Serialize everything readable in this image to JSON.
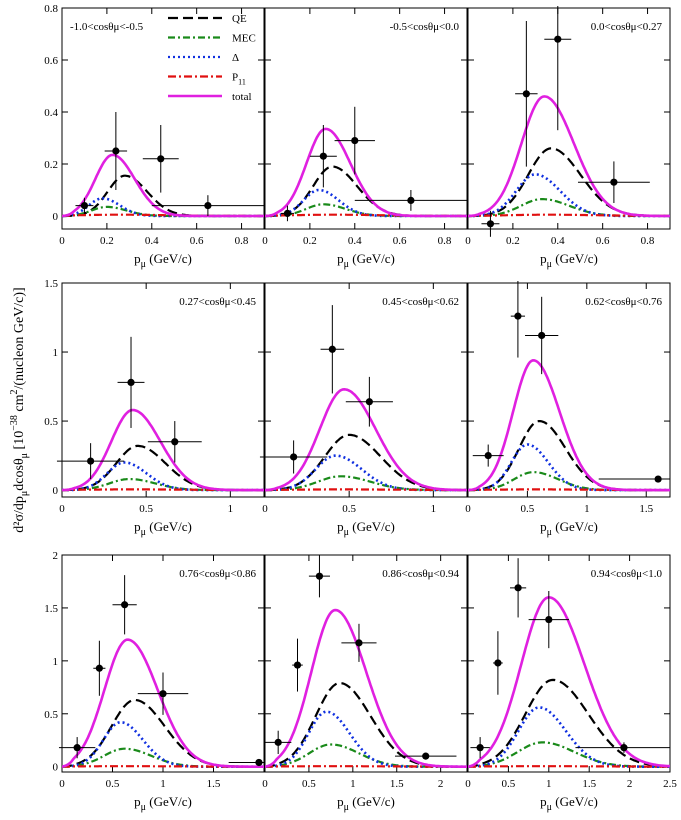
{
  "figure": {
    "ylabel": "d²σ/dp",
    "ylabel_sub1": "μ",
    "ylabel_mid": "dcosθ",
    "ylabel_sub2": "μ",
    "ylabel_mid2": " [10",
    "ylabel_sup1": "−38",
    "ylabel_mid3": " cm",
    "ylabel_sup2": "2",
    "ylabel_end": "/(nucleon GeV/c)]",
    "xlabel_main": "p",
    "xlabel_sub": "μ",
    "xlabel_unit": " (GeV/c)"
  },
  "legend": [
    {
      "label": "QE",
      "sub": "",
      "color": "#000000",
      "dash": "10,5"
    },
    {
      "label": "MEC",
      "sub": "",
      "color": "#1a8a1a",
      "dash": "7,3,2,3"
    },
    {
      "label": "Δ",
      "sub": "",
      "color": "#1030e0",
      "dash": "2,3"
    },
    {
      "label": "P",
      "sub": "11",
      "color": "#e01010",
      "dash": "8,3,2,3"
    },
    {
      "label": "total",
      "sub": "",
      "color": "#e020e0",
      "dash": ""
    }
  ],
  "chart_data": [
    {
      "type": "line",
      "title": "-1.0<cosθμ<-0.5",
      "xlim": [
        0,
        0.9
      ],
      "ylim": [
        -0.05,
        0.8
      ],
      "xticks": [
        0,
        0.2,
        0.4,
        0.6,
        0.8
      ],
      "yticks": [
        0,
        0.2,
        0.4,
        0.6,
        0.8
      ],
      "xticklabels": [
        "0",
        "0.2",
        "0.4",
        "0.6",
        "0.8"
      ],
      "yticklabels": [
        "0",
        "0.2",
        "0.4",
        "0.6",
        "0.8"
      ],
      "series": [
        {
          "name": "QE",
          "peak_x": 0.28,
          "peak_y": 0.155,
          "width": 0.09
        },
        {
          "name": "MEC",
          "peak_x": 0.2,
          "peak_y": 0.035,
          "width": 0.08
        },
        {
          "name": "Δ",
          "peak_x": 0.18,
          "peak_y": 0.068,
          "width": 0.07
        },
        {
          "name": "P11",
          "peak_x": 0.25,
          "peak_y": 0.005,
          "width": 0.2
        },
        {
          "name": "total",
          "peak_x": 0.225,
          "peak_y": 0.235,
          "width": 0.09
        }
      ],
      "points": [
        {
          "x": 0.1,
          "y": 0.04,
          "xerr": 0.04,
          "yerr": 0.03
        },
        {
          "x": 0.24,
          "y": 0.25,
          "xerr": 0.05,
          "yerr": 0.15
        },
        {
          "x": 0.44,
          "y": 0.22,
          "xerr": 0.08,
          "yerr": 0.13
        },
        {
          "x": 0.65,
          "y": 0.04,
          "xerr": 0.25,
          "yerr": 0.04
        }
      ]
    },
    {
      "type": "line",
      "title": "-0.5<cosθμ<0.0",
      "xlim": [
        0,
        0.9
      ],
      "ylim": [
        -0.05,
        0.8
      ],
      "xticks": [
        0,
        0.2,
        0.4,
        0.6,
        0.8
      ],
      "yticks": [
        0,
        0.2,
        0.4,
        0.6,
        0.8
      ],
      "xticklabels": [
        "0",
        "0.2",
        "0.4",
        "0.6",
        "0.8"
      ],
      "yticklabels": [],
      "series": [
        {
          "name": "QE",
          "peak_x": 0.3,
          "peak_y": 0.19,
          "width": 0.1
        },
        {
          "name": "MEC",
          "peak_x": 0.26,
          "peak_y": 0.045,
          "width": 0.09
        },
        {
          "name": "Δ",
          "peak_x": 0.24,
          "peak_y": 0.1,
          "width": 0.08
        },
        {
          "name": "P11",
          "peak_x": 0.3,
          "peak_y": 0.005,
          "width": 0.2
        },
        {
          "name": "total",
          "peak_x": 0.27,
          "peak_y": 0.335,
          "width": 0.1
        }
      ],
      "points": [
        {
          "x": 0.1,
          "y": 0.01,
          "xerr": 0.03,
          "yerr": 0.03
        },
        {
          "x": 0.26,
          "y": 0.23,
          "xerr": 0.06,
          "yerr": 0.12
        },
        {
          "x": 0.4,
          "y": 0.29,
          "xerr": 0.09,
          "yerr": 0.13
        },
        {
          "x": 0.65,
          "y": 0.06,
          "xerr": 0.25,
          "yerr": 0.04
        }
      ]
    },
    {
      "type": "line",
      "title": "0.0<cosθμ<0.27",
      "xlim": [
        0,
        0.9
      ],
      "ylim": [
        -0.05,
        0.8
      ],
      "xticks": [
        0,
        0.2,
        0.4,
        0.6,
        0.8
      ],
      "yticks": [
        0,
        0.2,
        0.4,
        0.6,
        0.8
      ],
      "xticklabels": [
        "0",
        "0.2",
        "0.4",
        "0.6",
        "0.8"
      ],
      "yticklabels": [],
      "series": [
        {
          "name": "QE",
          "peak_x": 0.37,
          "peak_y": 0.26,
          "width": 0.12
        },
        {
          "name": "MEC",
          "peak_x": 0.33,
          "peak_y": 0.065,
          "width": 0.11
        },
        {
          "name": "Δ",
          "peak_x": 0.3,
          "peak_y": 0.16,
          "width": 0.1
        },
        {
          "name": "P11",
          "peak_x": 0.35,
          "peak_y": 0.005,
          "width": 0.2
        },
        {
          "name": "total",
          "peak_x": 0.34,
          "peak_y": 0.46,
          "width": 0.12
        }
      ],
      "points": [
        {
          "x": 0.1,
          "y": -0.03,
          "xerr": 0.04,
          "yerr": 0.05
        },
        {
          "x": 0.26,
          "y": 0.47,
          "xerr": 0.05,
          "yerr": 0.28
        },
        {
          "x": 0.4,
          "y": 0.68,
          "xerr": 0.06,
          "yerr": 0.35
        },
        {
          "x": 0.65,
          "y": 0.13,
          "xerr": 0.16,
          "yerr": 0.08
        }
      ]
    },
    {
      "type": "line",
      "title": "0.27<cosθμ<0.45",
      "xlim": [
        0,
        1.2
      ],
      "ylim": [
        -0.05,
        1.5
      ],
      "xticks": [
        0,
        0.5,
        1
      ],
      "yticks": [
        0,
        0.5,
        1,
        1.5
      ],
      "xticklabels": [
        "0",
        "0.5",
        "1"
      ],
      "yticklabels": [
        "0",
        "0.5",
        "1",
        "1.5"
      ],
      "series": [
        {
          "name": "QE",
          "peak_x": 0.45,
          "peak_y": 0.32,
          "width": 0.15
        },
        {
          "name": "MEC",
          "peak_x": 0.4,
          "peak_y": 0.08,
          "width": 0.14
        },
        {
          "name": "Δ",
          "peak_x": 0.37,
          "peak_y": 0.2,
          "width": 0.12
        },
        {
          "name": "P11",
          "peak_x": 0.4,
          "peak_y": 0.005,
          "width": 0.3
        },
        {
          "name": "total",
          "peak_x": 0.42,
          "peak_y": 0.58,
          "width": 0.15
        }
      ],
      "points": [
        {
          "x": 0.17,
          "y": 0.21,
          "xerr": 0.2,
          "yerr": 0.13
        },
        {
          "x": 0.41,
          "y": 0.78,
          "xerr": 0.08,
          "yerr": 0.33
        },
        {
          "x": 0.67,
          "y": 0.35,
          "xerr": 0.16,
          "yerr": 0.15
        }
      ]
    },
    {
      "type": "line",
      "title": "0.45<cosθμ<0.62",
      "xlim": [
        0,
        1.2
      ],
      "ylim": [
        -0.05,
        1.5
      ],
      "xticks": [
        0,
        0.5,
        1
      ],
      "yticks": [
        0,
        0.5,
        1,
        1.5
      ],
      "xticklabels": [
        "0",
        "0.5",
        "1"
      ],
      "yticklabels": [],
      "series": [
        {
          "name": "QE",
          "peak_x": 0.5,
          "peak_y": 0.4,
          "width": 0.17
        },
        {
          "name": "MEC",
          "peak_x": 0.45,
          "peak_y": 0.1,
          "width": 0.16
        },
        {
          "name": "Δ",
          "peak_x": 0.42,
          "peak_y": 0.25,
          "width": 0.14
        },
        {
          "name": "P11",
          "peak_x": 0.45,
          "peak_y": 0.005,
          "width": 0.3
        },
        {
          "name": "total",
          "peak_x": 0.47,
          "peak_y": 0.73,
          "width": 0.17
        }
      ],
      "points": [
        {
          "x": 0.17,
          "y": 0.24,
          "xerr": 0.2,
          "yerr": 0.12
        },
        {
          "x": 0.4,
          "y": 1.02,
          "xerr": 0.07,
          "yerr": 0.32
        },
        {
          "x": 0.62,
          "y": 0.64,
          "xerr": 0.14,
          "yerr": 0.18
        }
      ]
    },
    {
      "type": "line",
      "title": "0.62<cosθμ<0.76",
      "xlim": [
        0,
        1.7
      ],
      "ylim": [
        -0.05,
        1.5
      ],
      "xticks": [
        0,
        0.5,
        1,
        1.5
      ],
      "yticks": [
        0,
        0.5,
        1,
        1.5
      ],
      "xticklabels": [
        "0",
        "0.5",
        "1",
        "1.5"
      ],
      "yticklabels": [],
      "series": [
        {
          "name": "QE",
          "peak_x": 0.6,
          "peak_y": 0.5,
          "width": 0.2
        },
        {
          "name": "MEC",
          "peak_x": 0.55,
          "peak_y": 0.13,
          "width": 0.19
        },
        {
          "name": "Δ",
          "peak_x": 0.5,
          "peak_y": 0.33,
          "width": 0.16
        },
        {
          "name": "P11",
          "peak_x": 0.55,
          "peak_y": 0.005,
          "width": 0.4
        },
        {
          "name": "total",
          "peak_x": 0.55,
          "peak_y": 0.94,
          "width": 0.2
        }
      ],
      "points": [
        {
          "x": 0.17,
          "y": 0.25,
          "xerr": 0.13,
          "yerr": 0.08
        },
        {
          "x": 0.42,
          "y": 1.26,
          "xerr": 0.06,
          "yerr": 0.3
        },
        {
          "x": 0.62,
          "y": 1.12,
          "xerr": 0.14,
          "yerr": 0.28
        },
        {
          "x": 1.6,
          "y": 0.08,
          "xerr": 0.5,
          "yerr": 0.02
        }
      ]
    },
    {
      "type": "line",
      "title": "0.76<cosθμ<0.86",
      "xlim": [
        0,
        2.0
      ],
      "ylim": [
        -0.05,
        2.0
      ],
      "xticks": [
        0,
        0.5,
        1,
        1.5
      ],
      "yticks": [
        0,
        0.5,
        1,
        1.5,
        2
      ],
      "xticklabels": [
        "0",
        "0.5",
        "1",
        "1.5"
      ],
      "yticklabels": [
        "0",
        "0.5",
        "1",
        "1.5",
        "2"
      ],
      "series": [
        {
          "name": "QE",
          "peak_x": 0.72,
          "peak_y": 0.63,
          "width": 0.27
        },
        {
          "name": "MEC",
          "peak_x": 0.62,
          "peak_y": 0.17,
          "width": 0.24
        },
        {
          "name": "Δ",
          "peak_x": 0.58,
          "peak_y": 0.42,
          "width": 0.2
        },
        {
          "name": "P11",
          "peak_x": 0.6,
          "peak_y": 0.005,
          "width": 0.5
        },
        {
          "name": "total",
          "peak_x": 0.65,
          "peak_y": 1.2,
          "width": 0.27
        }
      ],
      "points": [
        {
          "x": 0.15,
          "y": 0.18,
          "xerr": 0.18,
          "yerr": 0.1
        },
        {
          "x": 0.37,
          "y": 0.93,
          "xerr": 0.06,
          "yerr": 0.26
        },
        {
          "x": 0.62,
          "y": 1.53,
          "xerr": 0.12,
          "yerr": 0.28
        },
        {
          "x": 1.0,
          "y": 0.69,
          "xerr": 0.25,
          "yerr": 0.2
        },
        {
          "x": 1.95,
          "y": 0.04,
          "xerr": 0.3,
          "yerr": 0.02
        }
      ]
    },
    {
      "type": "line",
      "title": "0.86<cosθμ<0.94",
      "xlim": [
        0,
        2.3
      ],
      "ylim": [
        -0.05,
        2.0
      ],
      "xticks": [
        0,
        0.5,
        1,
        1.5,
        2
      ],
      "yticks": [
        0,
        0.5,
        1,
        1.5,
        2
      ],
      "xticklabels": [
        "0",
        "0.5",
        "1",
        "1.5",
        "2"
      ],
      "yticklabels": [],
      "series": [
        {
          "name": "QE",
          "peak_x": 0.85,
          "peak_y": 0.79,
          "width": 0.32
        },
        {
          "name": "MEC",
          "peak_x": 0.75,
          "peak_y": 0.21,
          "width": 0.29
        },
        {
          "name": "Δ",
          "peak_x": 0.7,
          "peak_y": 0.52,
          "width": 0.24
        },
        {
          "name": "P11",
          "peak_x": 0.75,
          "peak_y": 0.005,
          "width": 0.6
        },
        {
          "name": "total",
          "peak_x": 0.8,
          "peak_y": 1.48,
          "width": 0.32
        }
      ],
      "points": [
        {
          "x": 0.15,
          "y": 0.23,
          "xerr": 0.15,
          "yerr": 0.11
        },
        {
          "x": 0.37,
          "y": 0.96,
          "xerr": 0.06,
          "yerr": 0.25
        },
        {
          "x": 0.62,
          "y": 1.8,
          "xerr": 0.12,
          "yerr": 0.2
        },
        {
          "x": 1.07,
          "y": 1.17,
          "xerr": 0.2,
          "yerr": 0.18
        },
        {
          "x": 1.83,
          "y": 0.1,
          "xerr": 0.35,
          "yerr": 0.02
        }
      ]
    },
    {
      "type": "line",
      "title": "0.94<cosθμ<1.0",
      "xlim": [
        0,
        2.5
      ],
      "ylim": [
        -0.05,
        2.0
      ],
      "xticks": [
        0,
        0.5,
        1,
        1.5,
        2,
        2.5
      ],
      "yticks": [
        0,
        0.5,
        1,
        1.5,
        2
      ],
      "xticklabels": [
        "0",
        "0.5",
        "1",
        "1.5",
        "2",
        "2.5"
      ],
      "yticklabels": [],
      "series": [
        {
          "name": "QE",
          "peak_x": 1.05,
          "peak_y": 0.82,
          "width": 0.4
        },
        {
          "name": "MEC",
          "peak_x": 0.92,
          "peak_y": 0.23,
          "width": 0.36
        },
        {
          "name": "Δ",
          "peak_x": 0.88,
          "peak_y": 0.56,
          "width": 0.3
        },
        {
          "name": "P11",
          "peak_x": 0.9,
          "peak_y": 0.005,
          "width": 0.7
        },
        {
          "name": "total",
          "peak_x": 1.0,
          "peak_y": 1.6,
          "width": 0.4
        }
      ],
      "points": [
        {
          "x": 0.15,
          "y": 0.18,
          "xerr": 0.12,
          "yerr": 0.1
        },
        {
          "x": 0.37,
          "y": 0.98,
          "xerr": 0.06,
          "yerr": 0.3
        },
        {
          "x": 0.62,
          "y": 1.69,
          "xerr": 0.1,
          "yerr": 0.28
        },
        {
          "x": 1.0,
          "y": 1.39,
          "xerr": 0.25,
          "yerr": 0.27
        },
        {
          "x": 1.93,
          "y": 0.18,
          "xerr": 0.6,
          "yerr": 0.05
        }
      ]
    }
  ]
}
